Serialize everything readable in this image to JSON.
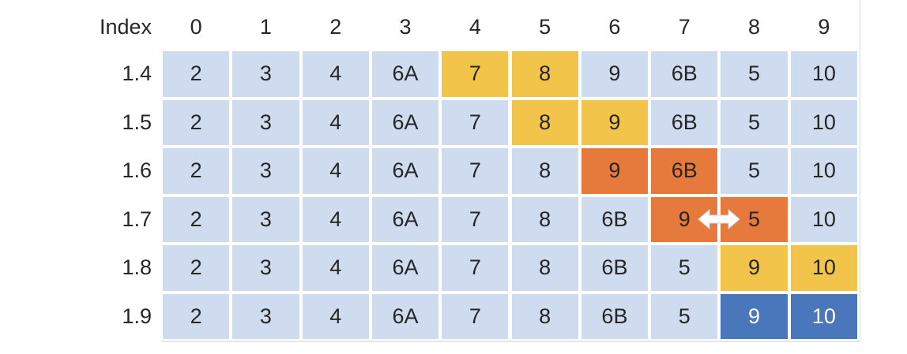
{
  "header_label": "Index",
  "column_indices": [
    "0",
    "1",
    "2",
    "3",
    "4",
    "5",
    "6",
    "7",
    "8",
    "9"
  ],
  "colors": {
    "cell": "#cfdcef",
    "highlight_yellow": "#f2c44a",
    "highlight_orange": "#e57a3c",
    "highlight_blue": "#4a76bb"
  },
  "rows": [
    {
      "label": "1.4",
      "values": [
        "2",
        "3",
        "4",
        "6A",
        "7",
        "8",
        "9",
        "6B",
        "5",
        "10"
      ],
      "highlight": [
        "blue",
        "blue",
        "blue",
        "blue",
        "yellow",
        "yellow",
        "blue",
        "blue",
        "blue",
        "blue"
      ]
    },
    {
      "label": "1.5",
      "values": [
        "2",
        "3",
        "4",
        "6A",
        "7",
        "8",
        "9",
        "6B",
        "5",
        "10"
      ],
      "highlight": [
        "blue",
        "blue",
        "blue",
        "blue",
        "blue",
        "yellow",
        "yellow",
        "blue",
        "blue",
        "blue"
      ]
    },
    {
      "label": "1.6",
      "values": [
        "2",
        "3",
        "4",
        "6A",
        "7",
        "8",
        "9",
        "6B",
        "5",
        "10"
      ],
      "highlight": [
        "blue",
        "blue",
        "blue",
        "blue",
        "blue",
        "blue",
        "orange",
        "orange",
        "blue",
        "blue"
      ]
    },
    {
      "label": "1.7",
      "values": [
        "2",
        "3",
        "4",
        "6A",
        "7",
        "8",
        "6B",
        "9",
        "5",
        "10"
      ],
      "highlight": [
        "blue",
        "blue",
        "blue",
        "blue",
        "blue",
        "blue",
        "blue",
        "orange",
        "orange",
        "blue"
      ],
      "swap_arrow": "double-arrow-icon"
    },
    {
      "label": "1.8",
      "values": [
        "2",
        "3",
        "4",
        "6A",
        "7",
        "8",
        "6B",
        "5",
        "9",
        "10"
      ],
      "highlight": [
        "blue",
        "blue",
        "blue",
        "blue",
        "blue",
        "blue",
        "blue",
        "blue",
        "yellow",
        "yellow"
      ]
    },
    {
      "label": "1.9",
      "values": [
        "2",
        "3",
        "4",
        "6A",
        "7",
        "8",
        "6B",
        "5",
        "9",
        "10"
      ],
      "highlight": [
        "blue",
        "blue",
        "blue",
        "blue",
        "blue",
        "blue",
        "blue",
        "blue",
        "dark",
        "dark"
      ]
    }
  ]
}
